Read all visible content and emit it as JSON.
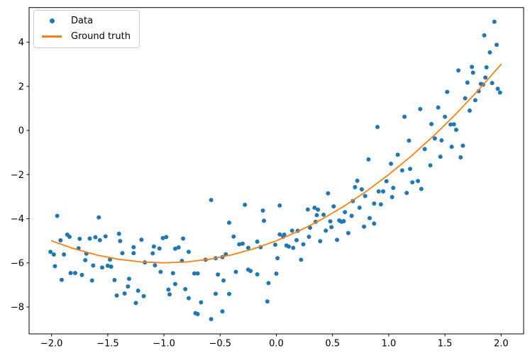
{
  "chart_data": {
    "type": "scatter",
    "grid": false,
    "xlim": [
      -2.2,
      2.2
    ],
    "ylim": [
      -9.22,
      5.57
    ],
    "xticks": {
      "values": [
        -2.0,
        -1.5,
        -1.0,
        -0.5,
        0.0,
        0.5,
        1.0,
        1.5,
        2.0
      ],
      "labels": [
        "−2.0",
        "−1.5",
        "−1.0",
        "−0.5",
        "0.0",
        "0.5",
        "1.0",
        "1.5",
        "2.0"
      ]
    },
    "yticks": {
      "values": [
        4,
        2,
        0,
        -2,
        -4,
        -6,
        -8
      ],
      "labels": [
        "4",
        "2",
        "0",
        "−2",
        "−4",
        "−6",
        "−8"
      ]
    },
    "legend": {
      "position": "upper left",
      "entries": [
        {
          "label": "Data",
          "marker": "dot",
          "color": "#1f77b4"
        },
        {
          "label": "Ground truth",
          "marker": "line",
          "color": "#ff7f0e"
        }
      ]
    },
    "colors": {
      "background": "#ffffff",
      "frame": "#000000",
      "tick_text": "#000000"
    },
    "series": [
      {
        "name": "Data",
        "type": "scatter",
        "color": "#1f77b4",
        "marker_radius": 3,
        "points": [
          [
            -1.95,
            -3.87
          ],
          [
            -1.58,
            -3.94
          ],
          [
            -1.86,
            -4.72
          ],
          [
            -1.92,
            -4.98
          ],
          [
            -1.84,
            -4.82
          ],
          [
            -1.75,
            -4.91
          ],
          [
            -1.66,
            -4.9
          ],
          [
            -1.61,
            -4.84
          ],
          [
            -1.57,
            -4.97
          ],
          [
            -1.52,
            -4.8
          ],
          [
            -1.4,
            -4.68
          ],
          [
            -1.39,
            -5.01
          ],
          [
            -2.01,
            -5.5
          ],
          [
            -1.98,
            -5.62
          ],
          [
            -1.89,
            -5.62
          ],
          [
            -1.76,
            -5.34
          ],
          [
            -1.69,
            -5.58
          ],
          [
            -1.97,
            -6.15
          ],
          [
            -1.7,
            -5.88
          ],
          [
            -1.63,
            -6.12
          ],
          [
            -1.55,
            -6.21
          ],
          [
            -1.5,
            -6.13
          ],
          [
            -1.47,
            -6.17
          ],
          [
            -1.48,
            -5.85
          ],
          [
            -1.37,
            -5.56
          ],
          [
            -1.27,
            -5.29
          ],
          [
            -1.27,
            -5.56
          ],
          [
            -1.2,
            -4.95
          ],
          [
            -1.17,
            -5.98
          ],
          [
            -1.1,
            -5.57
          ],
          [
            -1.09,
            -5.26
          ],
          [
            -1.08,
            -6.11
          ],
          [
            -1.83,
            -6.46
          ],
          [
            -1.79,
            -6.46
          ],
          [
            -1.73,
            -6.55
          ],
          [
            -1.91,
            -6.77
          ],
          [
            -1.64,
            -6.8
          ],
          [
            -1.44,
            -6.78
          ],
          [
            -1.31,
            -6.72
          ],
          [
            -1.32,
            -7.07
          ],
          [
            -1.42,
            -7.48
          ],
          [
            -1.35,
            -7.39
          ],
          [
            -1.23,
            -7.26
          ],
          [
            -1.18,
            -7.51
          ],
          [
            -1.25,
            -7.82
          ],
          [
            -0.58,
            -3.15
          ],
          [
            -0.28,
            -3.37
          ],
          [
            -0.12,
            -3.63
          ],
          [
            -0.11,
            -4.09
          ],
          [
            -0.42,
            -4.18
          ],
          [
            -1.01,
            -4.88
          ],
          [
            -0.98,
            -4.83
          ],
          [
            -0.83,
            -4.9
          ],
          [
            -0.38,
            -4.81
          ],
          [
            -1.04,
            -5.35
          ],
          [
            -0.9,
            -5.36
          ],
          [
            -0.87,
            -5.3
          ],
          [
            -0.78,
            -5.5
          ],
          [
            -0.84,
            -5.91
          ],
          [
            -0.63,
            -5.86
          ],
          [
            -0.54,
            -5.79
          ],
          [
            -0.48,
            -5.74
          ],
          [
            -0.45,
            -5.61
          ],
          [
            -1.03,
            -6.41
          ],
          [
            -0.92,
            -6.47
          ],
          [
            -0.73,
            -6.48
          ],
          [
            -0.7,
            -6.48
          ],
          [
            -0.52,
            -6.53
          ],
          [
            -0.47,
            -6.8
          ],
          [
            -0.36,
            -6.41
          ],
          [
            -0.25,
            -6.31
          ],
          [
            -0.23,
            -6.37
          ],
          [
            -0.17,
            -6.52
          ],
          [
            -0.9,
            -6.96
          ],
          [
            -0.96,
            -7.21
          ],
          [
            -0.95,
            -7.43
          ],
          [
            -0.81,
            -7.19
          ],
          [
            -0.78,
            -7.6
          ],
          [
            -0.54,
            -7.4
          ],
          [
            -0.67,
            -7.79
          ],
          [
            -0.42,
            -7.41
          ],
          [
            -0.72,
            -8.28
          ],
          [
            -0.7,
            -8.32
          ],
          [
            -0.48,
            -8.2
          ],
          [
            -0.58,
            -8.55
          ],
          [
            -0.08,
            -7.75
          ],
          [
            -0.07,
            -6.92
          ],
          [
            -0.14,
            -5.29
          ],
          [
            -0.17,
            -5.04
          ],
          [
            -0.33,
            -5.16
          ],
          [
            -0.3,
            -5.13
          ],
          [
            -0.25,
            -5.32
          ],
          [
            -0.01,
            -5.18
          ],
          [
            0.72,
            -2.28
          ],
          [
            0.7,
            -2.57
          ],
          [
            0.76,
            -2.67
          ],
          [
            0.98,
            -2.3
          ],
          [
            0.91,
            -2.76
          ],
          [
            0.95,
            -2.76
          ],
          [
            1.04,
            -2.6
          ],
          [
            1.03,
            -3.02
          ],
          [
            0.79,
            -2.97
          ],
          [
            0.46,
            -2.85
          ],
          [
            0.03,
            -3.4
          ],
          [
            0.28,
            -3.58
          ],
          [
            0.34,
            -3.5
          ],
          [
            0.37,
            -3.59
          ],
          [
            0.51,
            -3.44
          ],
          [
            0.61,
            -3.7
          ],
          [
            0.68,
            -3.2
          ],
          [
            0.87,
            -3.31
          ],
          [
            0.93,
            -3.35
          ],
          [
            0.74,
            -3.5
          ],
          [
            0.36,
            -3.84
          ],
          [
            0.42,
            -3.82
          ],
          [
            0.35,
            -4.14
          ],
          [
            0.48,
            -4.12
          ],
          [
            0.56,
            -4.08
          ],
          [
            0.58,
            -4.14
          ],
          [
            0.6,
            -4.11
          ],
          [
            0.67,
            -3.87
          ],
          [
            0.78,
            -4.36
          ],
          [
            0.83,
            -3.97
          ],
          [
            0.87,
            -4.22
          ],
          [
            0.14,
            -4.54
          ],
          [
            0.19,
            -4.55
          ],
          [
            0.3,
            -4.41
          ],
          [
            0.44,
            -4.54
          ],
          [
            0.49,
            -4.38
          ],
          [
            0.03,
            -4.71
          ],
          [
            0.07,
            -4.72
          ],
          [
            0.06,
            -4.82
          ],
          [
            0.18,
            -4.97
          ],
          [
            0.29,
            -4.82
          ],
          [
            0.24,
            -5.16
          ],
          [
            0.39,
            -5.02
          ],
          [
            0.54,
            -4.96
          ],
          [
            0.64,
            -4.65
          ],
          [
            0.09,
            -5.21
          ],
          [
            0.11,
            -5.26
          ],
          [
            0.15,
            -5.32
          ],
          [
            0.01,
            -5.79
          ],
          [
            0.0,
            -6.49
          ],
          [
            0.22,
            -5.86
          ],
          [
            1.94,
            4.93
          ],
          [
            1.85,
            4.31
          ],
          [
            1.96,
            3.88
          ],
          [
            1.9,
            3.54
          ],
          [
            1.87,
            2.86
          ],
          [
            1.74,
            2.88
          ],
          [
            1.62,
            2.72
          ],
          [
            1.75,
            2.62
          ],
          [
            1.86,
            2.4
          ],
          [
            1.7,
            2.17
          ],
          [
            1.82,
            2.11
          ],
          [
            1.84,
            2.08
          ],
          [
            1.92,
            2.15
          ],
          [
            1.97,
            1.89
          ],
          [
            1.99,
            1.72
          ],
          [
            1.8,
            1.78
          ],
          [
            1.52,
            1.75
          ],
          [
            1.68,
            1.46
          ],
          [
            1.77,
            1.37
          ],
          [
            1.28,
            0.97
          ],
          [
            1.44,
            1.04
          ],
          [
            1.72,
            0.9
          ],
          [
            1.14,
            0.62
          ],
          [
            1.5,
            0.62
          ],
          [
            1.38,
            0.29
          ],
          [
            1.55,
            0.27
          ],
          [
            1.58,
            0.28
          ],
          [
            1.6,
            0.03
          ],
          [
            1.18,
            -0.46
          ],
          [
            1.41,
            -0.36
          ],
          [
            1.47,
            -0.45
          ],
          [
            1.32,
            -0.84
          ],
          [
            1.56,
            -0.74
          ],
          [
            1.66,
            -0.69
          ],
          [
            1.46,
            -1.19
          ],
          [
            1.64,
            -1.22
          ],
          [
            1.37,
            -1.58
          ],
          [
            1.19,
            -1.74
          ],
          [
            1.12,
            -1.81
          ],
          [
            1.21,
            -2.35
          ],
          [
            1.26,
            -2.29
          ],
          [
            1.29,
            -2.65
          ],
          [
            1.16,
            -2.83
          ],
          [
            0.9,
            0.16
          ],
          [
            0.82,
            -1.31
          ],
          [
            1.08,
            -1.1
          ],
          [
            1.02,
            -1.51
          ]
        ]
      },
      {
        "name": "Ground truth",
        "type": "line",
        "color": "#ff7f0e",
        "line_width": 1.8,
        "x": [
          -2.0,
          -1.8,
          -1.6,
          -1.4,
          -1.2,
          -1.0,
          -0.8,
          -0.6,
          -0.4,
          -0.2,
          0.0,
          0.2,
          0.4,
          0.6,
          0.8,
          1.0,
          1.2,
          1.4,
          1.6,
          1.8,
          2.0
        ],
        "y": [
          -5.0,
          -5.36,
          -5.64,
          -5.84,
          -5.96,
          -6.0,
          -5.96,
          -5.84,
          -5.64,
          -5.36,
          -5.0,
          -4.56,
          -4.04,
          -3.44,
          -2.76,
          -2.0,
          -1.16,
          -0.24,
          0.76,
          1.84,
          3.0
        ]
      }
    ]
  }
}
